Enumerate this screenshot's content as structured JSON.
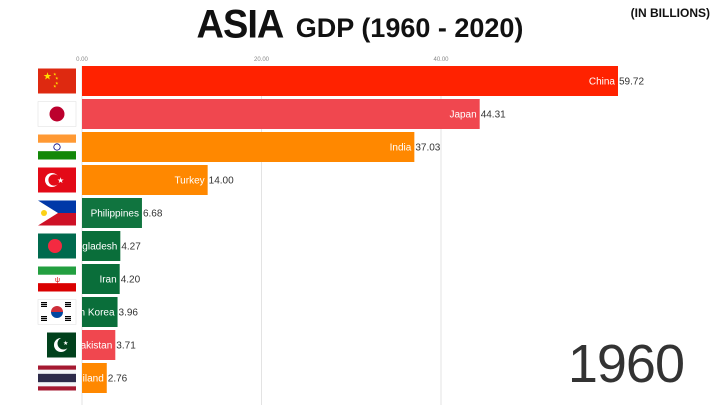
{
  "header": {
    "title_main": "ASIA",
    "title_sub": "GDP (1960 - 2020)",
    "units": "(IN BILLIONS)"
  },
  "year": "1960",
  "colors": {
    "china": "#ff2200",
    "japan": "#f0474f",
    "india": "#ff8800",
    "turkey": "#ff8800",
    "philippines": "#10743f",
    "bangladesh": "#0a6e3a",
    "iran": "#0a6e3a",
    "south_korea": "#0a6e3a",
    "pakistan": "#f0474f",
    "thailand": "#ff8800"
  },
  "chart_data": {
    "type": "bar",
    "orientation": "horizontal",
    "categories": [
      "China",
      "Japan",
      "India",
      "Turkey",
      "Philippines",
      "Bangladesh",
      "Iran",
      "South Korea",
      "Pakistan",
      "Thailand"
    ],
    "bar_labels": [
      "China",
      "Japan",
      "India",
      "Turkey",
      "Philippines",
      "gladesh",
      "Iran",
      "h Korea",
      "akistan",
      "iland"
    ],
    "values": [
      59.72,
      44.31,
      37.03,
      14.0,
      6.68,
      4.27,
      4.2,
      3.96,
      3.71,
      2.76
    ],
    "value_labels": [
      "59.72",
      "44.31",
      "37.03",
      "14.00",
      "6.68",
      "4.27",
      "4.20",
      "3.96",
      "3.71",
      "2.76"
    ],
    "bar_colors": [
      "#ff2200",
      "#f0474f",
      "#ff8800",
      "#ff8800",
      "#10743f",
      "#0a6e3a",
      "#0a6e3a",
      "#0a6e3a",
      "#f0474f",
      "#ff8800"
    ],
    "flags": [
      "china-flag",
      "japan-flag",
      "india-flag",
      "turkey-flag",
      "philippines-flag",
      "bangladesh-flag",
      "iran-flag",
      "south-korea-flag",
      "pakistan-flag",
      "thailand-flag"
    ],
    "xticks": [
      "0.00",
      "20.00",
      "40.00"
    ],
    "xtick_values": [
      0,
      20,
      40
    ],
    "xlim": [
      0,
      60
    ],
    "grid": true,
    "legend": "none"
  }
}
